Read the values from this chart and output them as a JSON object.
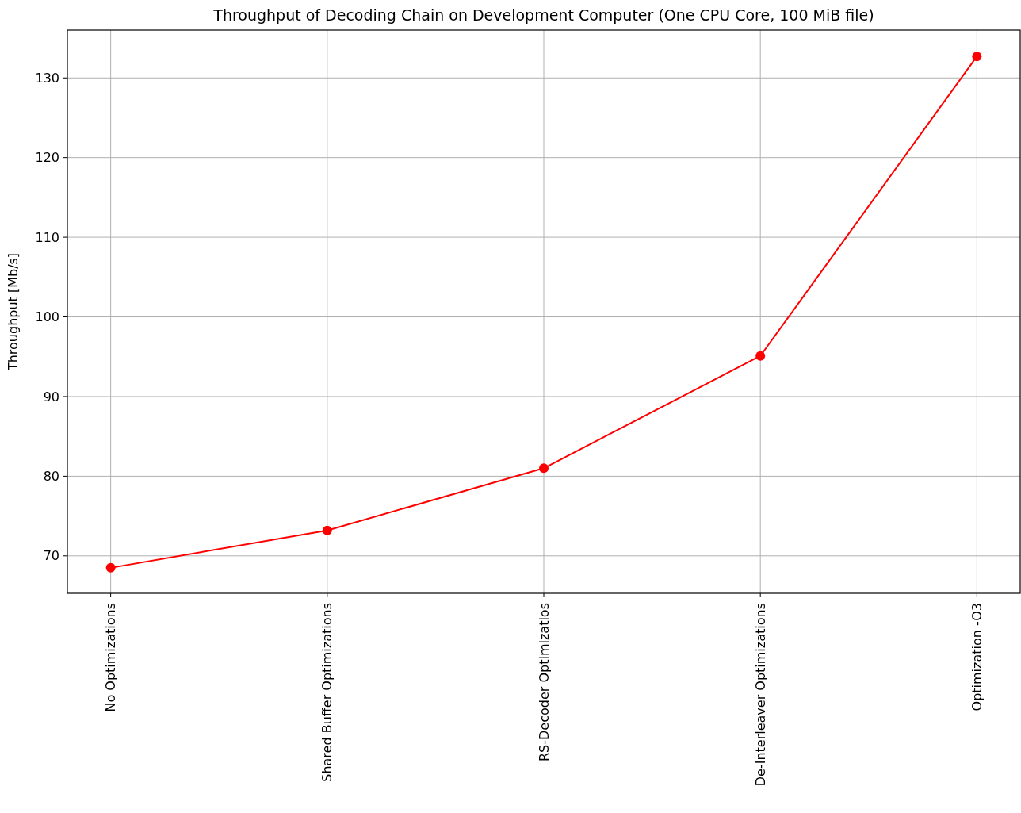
{
  "chart_data": {
    "type": "line",
    "title": "Throughput of Decoding Chain on Development Computer (One CPU Core, 100 MiB file)",
    "ylabel": "Throughput [Mb/s]",
    "categories": [
      "No Optimizations",
      "Shared Buffer Optimizations",
      "RS-Decoder Optimizatios",
      "De-Interleaver Optimizations",
      "Optimization -O3"
    ],
    "series": [
      {
        "color": "#ff0000",
        "values": [
          68.5,
          73.2,
          81.0,
          95.1,
          132.7
        ]
      }
    ],
    "ylim": [
      65.3,
      136.0
    ],
    "yticks": [
      70,
      80,
      90,
      100,
      110,
      120,
      130
    ],
    "grid": true,
    "marker": "circle",
    "line_style": "solid"
  }
}
